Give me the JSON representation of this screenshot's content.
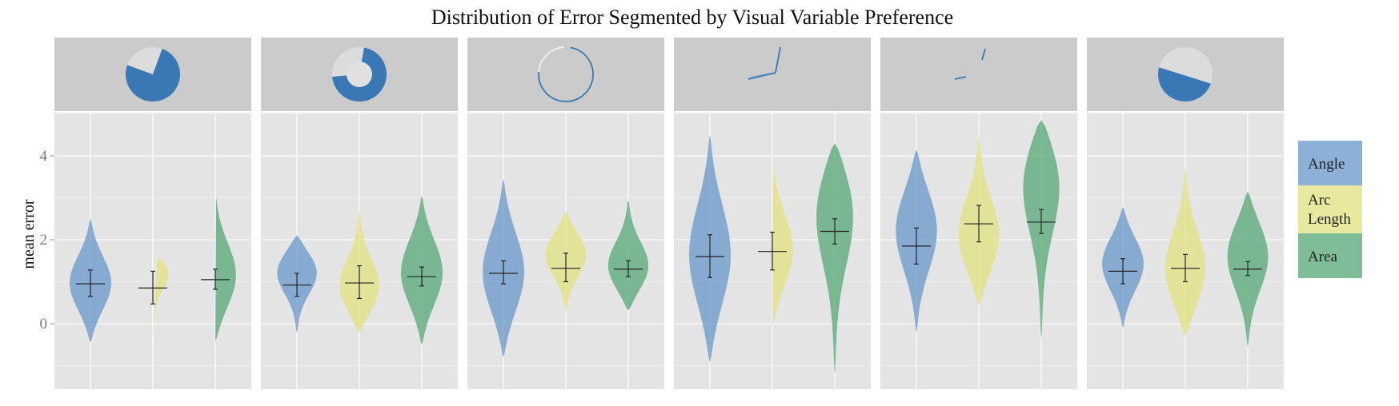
{
  "chart_data": {
    "type": "violin",
    "title": "Distribution of Error Segmented by Visual Variable Preference",
    "ylabel": "mean error",
    "xlabel": "",
    "ylim": [
      -1.6,
      5.1
    ],
    "yticks": [
      0,
      2,
      4
    ],
    "grid": true,
    "legend_position": "right",
    "colors": {
      "Angle": "#6d9acb",
      "Arc Length": "#e1e384",
      "Area": "#5aab7a"
    },
    "legend": [
      "Angle",
      "Arc Length",
      "Area"
    ],
    "panels": [
      {
        "icon": "pie-icon",
        "series": [
          {
            "name": "Angle",
            "min": -0.45,
            "max": 2.5,
            "mean": 0.95,
            "ci": [
              0.65,
              1.28
            ],
            "peak": 0.95
          },
          {
            "name": "Arc Length",
            "min": -0.28,
            "max": 1.65,
            "mean": 0.85,
            "ci": [
              0.47,
              1.25
            ],
            "peak": 1.4
          },
          {
            "name": "Area",
            "min": -0.42,
            "max": 3.1,
            "mean": 1.05,
            "ci": [
              0.82,
              1.3
            ],
            "peak": 1.1
          }
        ]
      },
      {
        "icon": "donut-icon",
        "series": [
          {
            "name": "Angle",
            "min": -0.22,
            "max": 2.1,
            "mean": 0.92,
            "ci": [
              0.65,
              1.2
            ],
            "peak": 1.3
          },
          {
            "name": "Arc Length",
            "min": -0.2,
            "max": 2.7,
            "mean": 0.97,
            "ci": [
              0.6,
              1.38
            ],
            "peak": 0.8
          },
          {
            "name": "Area",
            "min": -0.5,
            "max": 3.05,
            "mean": 1.12,
            "ci": [
              0.9,
              1.35
            ],
            "peak": 1.2
          }
        ]
      },
      {
        "icon": "arc-icon",
        "series": [
          {
            "name": "Angle",
            "min": -0.8,
            "max": 3.45,
            "mean": 1.2,
            "ci": [
              0.95,
              1.5
            ],
            "peak": 1.2
          },
          {
            "name": "Arc Length",
            "min": 0.28,
            "max": 2.67,
            "mean": 1.32,
            "ci": [
              1.0,
              1.68
            ],
            "peak": 1.7
          },
          {
            "name": "Area",
            "min": 0.32,
            "max": 2.95,
            "mean": 1.3,
            "ci": [
              1.12,
              1.5
            ],
            "peak": 1.3
          }
        ]
      },
      {
        "icon": "angle-lines-icon",
        "series": [
          {
            "name": "Angle",
            "min": -0.92,
            "max": 4.5,
            "mean": 1.6,
            "ci": [
              1.1,
              2.12
            ],
            "peak": 1.6
          },
          {
            "name": "Arc Length",
            "min": -0.05,
            "max": 3.9,
            "mean": 1.72,
            "ci": [
              1.28,
              2.18
            ],
            "peak": 1.7
          },
          {
            "name": "Area",
            "min": -1.2,
            "max": 4.3,
            "mean": 2.2,
            "ci": [
              1.9,
              2.5
            ],
            "peak": 2.9
          }
        ]
      },
      {
        "icon": "small-lines-icon",
        "series": [
          {
            "name": "Angle",
            "min": -0.22,
            "max": 4.15,
            "mean": 1.85,
            "ci": [
              1.42,
              2.28
            ],
            "peak": 2.3
          },
          {
            "name": "Arc Length",
            "min": 0.45,
            "max": 4.5,
            "mean": 2.38,
            "ci": [
              1.95,
              2.82
            ],
            "peak": 2.0
          },
          {
            "name": "Area",
            "min": -0.35,
            "max": 4.85,
            "mean": 2.42,
            "ci": [
              2.15,
              2.72
            ],
            "peak": 3.6
          }
        ]
      },
      {
        "icon": "pie-half-icon",
        "series": [
          {
            "name": "Angle",
            "min": -0.1,
            "max": 2.78,
            "mean": 1.25,
            "ci": [
              0.95,
              1.55
            ],
            "peak": 1.45
          },
          {
            "name": "Arc Length",
            "min": -0.3,
            "max": 3.7,
            "mean": 1.32,
            "ci": [
              1.0,
              1.65
            ],
            "peak": 1.2
          },
          {
            "name": "Area",
            "min": -0.55,
            "max": 3.15,
            "mean": 1.3,
            "ci": [
              1.15,
              1.48
            ],
            "peak": 1.7
          }
        ]
      }
    ]
  }
}
